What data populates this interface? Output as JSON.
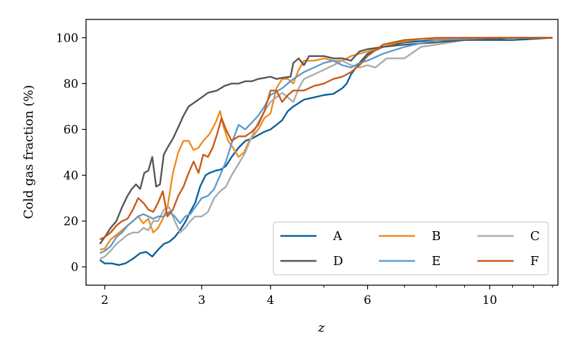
{
  "chart_data": {
    "type": "line",
    "xlabel": "z",
    "ylabel": "Cold gas fraction (%)",
    "xscale": "log",
    "xlim": [
      1.85,
      13.3
    ],
    "ylim": [
      -8,
      108
    ],
    "xticks": [
      {
        "value": 2,
        "label": "2"
      },
      {
        "value": 3,
        "label": "3"
      },
      {
        "value": 4,
        "label": "4"
      },
      {
        "value": 6,
        "label": "6"
      },
      {
        "value": 10,
        "label": "10"
      }
    ],
    "yticks": [
      {
        "value": 0,
        "label": "0"
      },
      {
        "value": 20,
        "label": "20"
      },
      {
        "value": 40,
        "label": "40"
      },
      {
        "value": 60,
        "label": "60"
      },
      {
        "value": 80,
        "label": "80"
      },
      {
        "value": 100,
        "label": "100"
      }
    ],
    "grid": false,
    "legend": {
      "position": "lower-right",
      "columns": 3
    },
    "series": [
      {
        "name": "A",
        "color": "#0A6099",
        "points": [
          [
            1.96,
            3
          ],
          [
            2.0,
            1.5
          ],
          [
            2.06,
            1.5
          ],
          [
            2.12,
            0.8
          ],
          [
            2.18,
            1.5
          ],
          [
            2.25,
            3.5
          ],
          [
            2.32,
            6
          ],
          [
            2.38,
            6.5
          ],
          [
            2.44,
            4.5
          ],
          [
            2.5,
            7.5
          ],
          [
            2.56,
            10
          ],
          [
            2.62,
            11
          ],
          [
            2.68,
            13
          ],
          [
            2.74,
            16
          ],
          [
            2.8,
            19.5
          ],
          [
            2.86,
            24
          ],
          [
            2.92,
            28
          ],
          [
            2.98,
            35
          ],
          [
            3.05,
            40
          ],
          [
            3.1,
            41
          ],
          [
            3.18,
            42
          ],
          [
            3.25,
            42.5
          ],
          [
            3.32,
            44
          ],
          [
            3.4,
            48
          ],
          [
            3.5,
            52
          ],
          [
            3.6,
            55
          ],
          [
            3.7,
            56
          ],
          [
            3.8,
            57.5
          ],
          [
            3.9,
            59
          ],
          [
            4.0,
            60
          ],
          [
            4.1,
            62
          ],
          [
            4.2,
            64
          ],
          [
            4.3,
            68
          ],
          [
            4.4,
            70
          ],
          [
            4.6,
            73
          ],
          [
            4.8,
            74
          ],
          [
            5.0,
            75
          ],
          [
            5.2,
            75.5
          ],
          [
            5.4,
            78
          ],
          [
            5.5,
            80
          ],
          [
            5.6,
            84
          ],
          [
            5.8,
            89
          ],
          [
            6.0,
            93
          ],
          [
            6.4,
            96
          ],
          [
            7.0,
            98
          ],
          [
            8.0,
            99
          ],
          [
            9.0,
            99
          ],
          [
            10.0,
            99
          ],
          [
            11.0,
            99
          ],
          [
            12.0,
            99.5
          ],
          [
            13.0,
            100
          ]
        ]
      },
      {
        "name": "B",
        "color": "#F28A1C",
        "points": [
          [
            1.96,
            7.5
          ],
          [
            2.0,
            8
          ],
          [
            2.05,
            12
          ],
          [
            2.1,
            14
          ],
          [
            2.15,
            16
          ],
          [
            2.2,
            18
          ],
          [
            2.25,
            20
          ],
          [
            2.3,
            22
          ],
          [
            2.35,
            19
          ],
          [
            2.4,
            21
          ],
          [
            2.45,
            15
          ],
          [
            2.5,
            17
          ],
          [
            2.55,
            21
          ],
          [
            2.6,
            26
          ],
          [
            2.66,
            41
          ],
          [
            2.72,
            50
          ],
          [
            2.78,
            55
          ],
          [
            2.84,
            55
          ],
          [
            2.9,
            51
          ],
          [
            2.96,
            52
          ],
          [
            3.02,
            55
          ],
          [
            3.1,
            58
          ],
          [
            3.18,
            63
          ],
          [
            3.24,
            68
          ],
          [
            3.28,
            62
          ],
          [
            3.35,
            55
          ],
          [
            3.42,
            52
          ],
          [
            3.5,
            48
          ],
          [
            3.58,
            50
          ],
          [
            3.66,
            55
          ],
          [
            3.74,
            58
          ],
          [
            3.8,
            60
          ],
          [
            3.9,
            65
          ],
          [
            4.0,
            67
          ],
          [
            4.1,
            78
          ],
          [
            4.2,
            82
          ],
          [
            4.3,
            82
          ],
          [
            4.4,
            80
          ],
          [
            4.5,
            86
          ],
          [
            4.6,
            90
          ],
          [
            4.8,
            90
          ],
          [
            5.0,
            91
          ],
          [
            5.2,
            90
          ],
          [
            5.4,
            90
          ],
          [
            5.6,
            92
          ],
          [
            6.0,
            94
          ],
          [
            6.4,
            96
          ],
          [
            6.8,
            98
          ],
          [
            7.5,
            99.5
          ],
          [
            9.0,
            100
          ],
          [
            13.0,
            100
          ]
        ]
      },
      {
        "name": "C",
        "color": "#AAAAAA",
        "points": [
          [
            1.96,
            3.5
          ],
          [
            2.0,
            4.5
          ],
          [
            2.05,
            7
          ],
          [
            2.1,
            10
          ],
          [
            2.15,
            12
          ],
          [
            2.2,
            14
          ],
          [
            2.25,
            15
          ],
          [
            2.3,
            15
          ],
          [
            2.35,
            17
          ],
          [
            2.4,
            16
          ],
          [
            2.45,
            20
          ],
          [
            2.5,
            20
          ],
          [
            2.56,
            25
          ],
          [
            2.62,
            26
          ],
          [
            2.68,
            20
          ],
          [
            2.74,
            15
          ],
          [
            2.8,
            17
          ],
          [
            2.86,
            20
          ],
          [
            2.92,
            22
          ],
          [
            3.0,
            22
          ],
          [
            3.08,
            24
          ],
          [
            3.16,
            30
          ],
          [
            3.24,
            33
          ],
          [
            3.32,
            35
          ],
          [
            3.4,
            40
          ],
          [
            3.5,
            45
          ],
          [
            3.6,
            50
          ],
          [
            3.7,
            57
          ],
          [
            3.8,
            63
          ],
          [
            3.9,
            68
          ],
          [
            4.0,
            72
          ],
          [
            4.2,
            76
          ],
          [
            4.4,
            72
          ],
          [
            4.5,
            78
          ],
          [
            4.6,
            82
          ],
          [
            4.8,
            84
          ],
          [
            5.0,
            86
          ],
          [
            5.2,
            88
          ],
          [
            5.4,
            90
          ],
          [
            5.6,
            88
          ],
          [
            5.8,
            87
          ],
          [
            6.0,
            88
          ],
          [
            6.2,
            87
          ],
          [
            6.5,
            91
          ],
          [
            7.0,
            91
          ],
          [
            7.5,
            96
          ],
          [
            8.0,
            97
          ],
          [
            8.5,
            98
          ],
          [
            9.0,
            99
          ],
          [
            10.0,
            99.5
          ],
          [
            11.0,
            100
          ],
          [
            13.0,
            100
          ]
        ]
      },
      {
        "name": "D",
        "color": "#555555",
        "points": [
          [
            1.96,
            10
          ],
          [
            2.0,
            13
          ],
          [
            2.05,
            17
          ],
          [
            2.1,
            20
          ],
          [
            2.15,
            26
          ],
          [
            2.2,
            31
          ],
          [
            2.24,
            34
          ],
          [
            2.28,
            36
          ],
          [
            2.32,
            34
          ],
          [
            2.36,
            41
          ],
          [
            2.4,
            42
          ],
          [
            2.44,
            48
          ],
          [
            2.48,
            35
          ],
          [
            2.52,
            36
          ],
          [
            2.56,
            49
          ],
          [
            2.6,
            52
          ],
          [
            2.66,
            56
          ],
          [
            2.72,
            61
          ],
          [
            2.78,
            66
          ],
          [
            2.84,
            70
          ],
          [
            2.92,
            72
          ],
          [
            3.0,
            74
          ],
          [
            3.08,
            76
          ],
          [
            3.2,
            77
          ],
          [
            3.3,
            79
          ],
          [
            3.4,
            80
          ],
          [
            3.5,
            80
          ],
          [
            3.6,
            81
          ],
          [
            3.7,
            81
          ],
          [
            3.8,
            82
          ],
          [
            3.9,
            82.5
          ],
          [
            4.0,
            83
          ],
          [
            4.1,
            82
          ],
          [
            4.2,
            82.5
          ],
          [
            4.35,
            83
          ],
          [
            4.4,
            89
          ],
          [
            4.5,
            91
          ],
          [
            4.6,
            88
          ],
          [
            4.7,
            92
          ],
          [
            4.8,
            92
          ],
          [
            5.0,
            92
          ],
          [
            5.2,
            91
          ],
          [
            5.4,
            91
          ],
          [
            5.6,
            90
          ],
          [
            5.8,
            94
          ],
          [
            6.0,
            95
          ],
          [
            6.4,
            96
          ],
          [
            7.0,
            97
          ],
          [
            8.0,
            98
          ],
          [
            9.0,
            99
          ],
          [
            10.0,
            99.5
          ],
          [
            11.0,
            100
          ],
          [
            13.0,
            100
          ]
        ]
      },
      {
        "name": "E",
        "color": "#5B9BD0",
        "points": [
          [
            1.96,
            6
          ],
          [
            2.0,
            7
          ],
          [
            2.05,
            9
          ],
          [
            2.1,
            13
          ],
          [
            2.15,
            15
          ],
          [
            2.2,
            18
          ],
          [
            2.25,
            20
          ],
          [
            2.3,
            22
          ],
          [
            2.35,
            23
          ],
          [
            2.4,
            22
          ],
          [
            2.45,
            21
          ],
          [
            2.5,
            22
          ],
          [
            2.56,
            22
          ],
          [
            2.62,
            24
          ],
          [
            2.68,
            22
          ],
          [
            2.74,
            19
          ],
          [
            2.8,
            22
          ],
          [
            2.86,
            23
          ],
          [
            2.92,
            26
          ],
          [
            3.0,
            30
          ],
          [
            3.08,
            31
          ],
          [
            3.16,
            34
          ],
          [
            3.24,
            40
          ],
          [
            3.32,
            46
          ],
          [
            3.4,
            54
          ],
          [
            3.5,
            62
          ],
          [
            3.6,
            60
          ],
          [
            3.7,
            63
          ],
          [
            3.8,
            66
          ],
          [
            3.9,
            70
          ],
          [
            4.0,
            75
          ],
          [
            4.2,
            78
          ],
          [
            4.4,
            82
          ],
          [
            4.6,
            85
          ],
          [
            4.8,
            87
          ],
          [
            5.0,
            89
          ],
          [
            5.2,
            90
          ],
          [
            5.4,
            88
          ],
          [
            5.6,
            87
          ],
          [
            5.8,
            89
          ],
          [
            6.0,
            90
          ],
          [
            6.4,
            93
          ],
          [
            7.0,
            96
          ],
          [
            8.0,
            99
          ],
          [
            9.0,
            99.5
          ],
          [
            10.0,
            100
          ],
          [
            13.0,
            100
          ]
        ]
      },
      {
        "name": "F",
        "color": "#C85A12",
        "points": [
          [
            1.96,
            12
          ],
          [
            2.0,
            13
          ],
          [
            2.05,
            15
          ],
          [
            2.1,
            18
          ],
          [
            2.15,
            20
          ],
          [
            2.2,
            21
          ],
          [
            2.25,
            25
          ],
          [
            2.3,
            30
          ],
          [
            2.35,
            28
          ],
          [
            2.4,
            25
          ],
          [
            2.45,
            24
          ],
          [
            2.5,
            28
          ],
          [
            2.55,
            33
          ],
          [
            2.6,
            22
          ],
          [
            2.66,
            25
          ],
          [
            2.72,
            31
          ],
          [
            2.78,
            35
          ],
          [
            2.84,
            41
          ],
          [
            2.9,
            46
          ],
          [
            2.96,
            41
          ],
          [
            3.02,
            49
          ],
          [
            3.08,
            48
          ],
          [
            3.14,
            52
          ],
          [
            3.2,
            58
          ],
          [
            3.26,
            65
          ],
          [
            3.32,
            60
          ],
          [
            3.4,
            55
          ],
          [
            3.5,
            57
          ],
          [
            3.6,
            57
          ],
          [
            3.7,
            59
          ],
          [
            3.8,
            62
          ],
          [
            3.9,
            68
          ],
          [
            4.0,
            77
          ],
          [
            4.1,
            77
          ],
          [
            4.2,
            72
          ],
          [
            4.3,
            75
          ],
          [
            4.4,
            77
          ],
          [
            4.6,
            77
          ],
          [
            4.8,
            79
          ],
          [
            5.0,
            80
          ],
          [
            5.2,
            82
          ],
          [
            5.4,
            83
          ],
          [
            5.6,
            85
          ],
          [
            5.8,
            88
          ],
          [
            6.0,
            92
          ],
          [
            6.4,
            97
          ],
          [
            7.0,
            99
          ],
          [
            8.0,
            100
          ],
          [
            13.0,
            100
          ]
        ]
      }
    ]
  }
}
